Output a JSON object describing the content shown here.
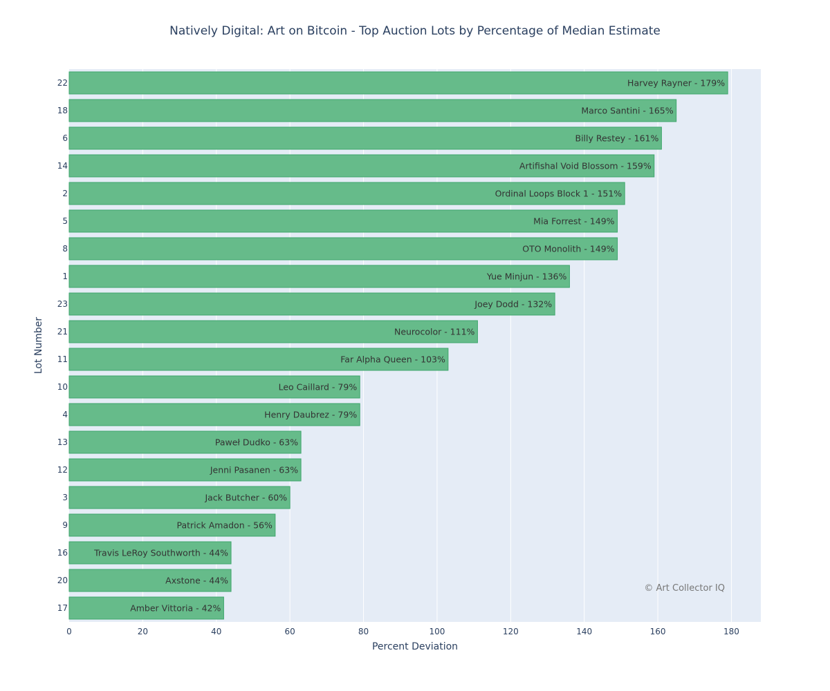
{
  "chart_data": {
    "type": "bar",
    "orientation": "horizontal",
    "title": "Natively Digital: Art on Bitcoin - Top Auction Lots by Percentage of Median Estimate",
    "xlabel": "Percent Deviation",
    "ylabel": "Lot Number",
    "xlim": [
      0,
      188
    ],
    "xticks": [
      0,
      20,
      40,
      60,
      80,
      100,
      120,
      140,
      160,
      180
    ],
    "grid": true,
    "bar_color": "#66bb8a",
    "bar_edge_color": "#3fa66c",
    "plot_background": "#e5ecf6",
    "categories": [
      "22",
      "18",
      "6",
      "14",
      "2",
      "5",
      "8",
      "1",
      "23",
      "21",
      "11",
      "10",
      "4",
      "13",
      "12",
      "3",
      "9",
      "16",
      "20",
      "17"
    ],
    "values": [
      179,
      165,
      161,
      159,
      151,
      149,
      149,
      136,
      132,
      111,
      103,
      79,
      79,
      63,
      63,
      60,
      56,
      44,
      44,
      42
    ],
    "labels": [
      "Harvey Rayner - 179%",
      "Marco Santini - 165%",
      "Billy Restey - 161%",
      "Artifishal Void Blossom - 159%",
      "Ordinal Loops Block 1 - 151%",
      "Mia Forrest - 149%",
      "OTO Monolith - 149%",
      "Yue Minjun - 136%",
      "Joey Dodd - 132%",
      "Neurocolor - 111%",
      "Far Alpha Queen - 103%",
      "Leo Caillard - 79%",
      "Henry Daubrez - 79%",
      "Paweł Dudko - 63%",
      "Jenni Pasanen - 63%",
      "Jack Butcher - 60%",
      "Patrick Amadon - 56%",
      "Travis LeRoy Southworth - 44%",
      "Axstone - 44%",
      "Amber Vittoria - 42%"
    ],
    "annotation": "© Art Collector IQ"
  }
}
